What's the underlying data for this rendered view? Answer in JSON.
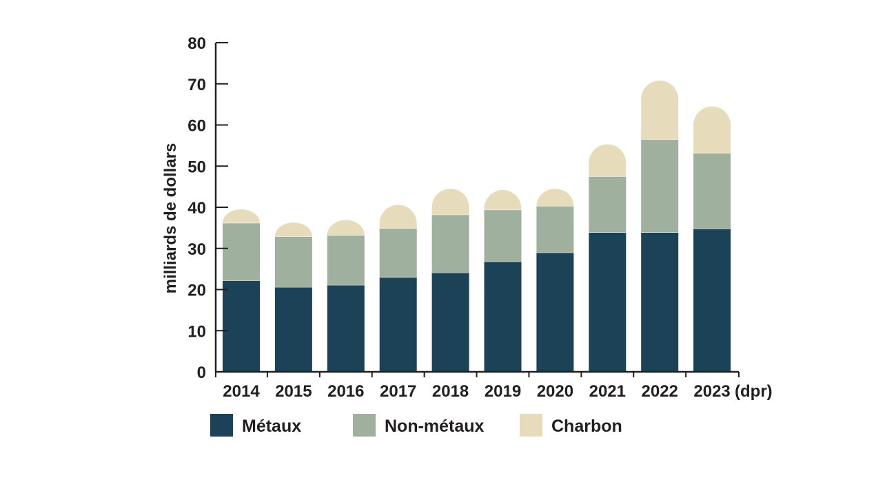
{
  "chart_data": {
    "type": "bar",
    "stacked": true,
    "categories": [
      "2014",
      "2015",
      "2016",
      "2017",
      "2018",
      "2019",
      "2020",
      "2021",
      "2022",
      "2023"
    ],
    "x_suffix": "(dpr)",
    "ylabel": "milliards de dollars",
    "ylim": [
      0,
      80
    ],
    "yticks": [
      0,
      10,
      20,
      30,
      40,
      50,
      60,
      70,
      80
    ],
    "grid": false,
    "legend_position": "bottom",
    "series": [
      {
        "name": "Métaux",
        "color": "#1b4256",
        "values": [
          22.2,
          20.6,
          21.1,
          23.0,
          24.1,
          26.8,
          29.0,
          33.9,
          33.9,
          34.8
        ]
      },
      {
        "name": "Non-métaux",
        "color": "#9fb09f",
        "values": [
          14.0,
          12.3,
          12.1,
          11.9,
          14.1,
          12.6,
          11.3,
          13.6,
          22.6,
          18.4
        ]
      },
      {
        "name": "Charbon",
        "color": "#e6dcbb",
        "values": [
          3.3,
          3.4,
          3.7,
          5.7,
          6.3,
          4.8,
          4.2,
          7.8,
          14.3,
          11.3
        ]
      }
    ]
  }
}
